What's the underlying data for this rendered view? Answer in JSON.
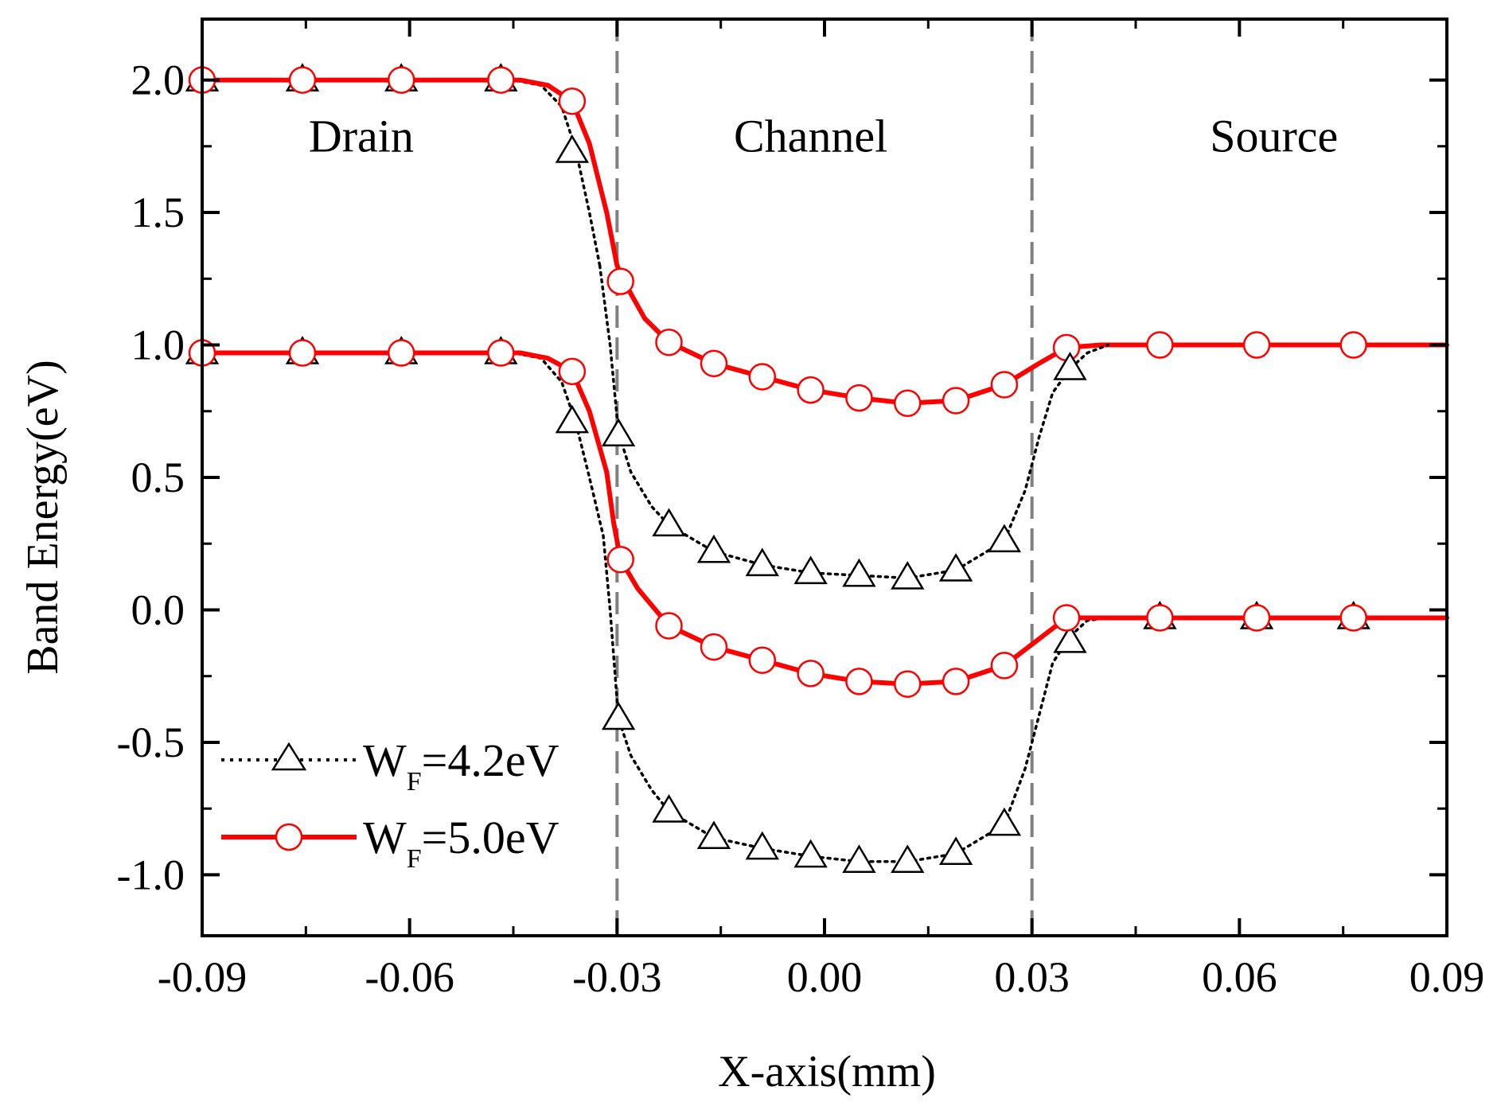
{
  "chart_data": {
    "type": "line",
    "xlabel": "X-axis(mm)",
    "ylabel": "Band Energy(eV)",
    "xlim": [
      -0.09,
      0.09
    ],
    "ylim": [
      -1.23,
      2.23
    ],
    "xticks": [
      -0.09,
      -0.06,
      -0.03,
      0.0,
      0.03,
      0.06,
      0.09
    ],
    "xtick_labels": [
      "-0.09",
      "-0.06",
      "-0.03",
      "0.00",
      "0.03",
      "0.06",
      "0.09"
    ],
    "yticks": [
      -1.0,
      -0.5,
      0.0,
      0.5,
      1.0,
      1.5,
      2.0
    ],
    "ytick_labels": [
      "-1.0",
      "-0.5",
      "0.0",
      "0.5",
      "1.0",
      "1.5",
      "2.0"
    ],
    "vlines": [
      -0.03,
      0.03
    ],
    "regions": [
      {
        "label": "Drain",
        "x": -0.067,
        "y": 1.73
      },
      {
        "label": "Channel",
        "x": -0.002,
        "y": 1.73
      },
      {
        "label": "Source",
        "x": 0.065,
        "y": 1.73
      }
    ],
    "legend": {
      "position": "lower-left",
      "entries": [
        {
          "base": "W",
          "sub": "F",
          "rest": "=4.2eV"
        },
        {
          "base": "W",
          "sub": "F",
          "rest": "=5.0eV"
        }
      ]
    },
    "series": [
      {
        "name": "WF=4.2eV conduction",
        "color": "#000000",
        "style": "dotted",
        "marker": "triangle",
        "line": [
          [
            -0.09,
            2.0
          ],
          [
            -0.045,
            2.0
          ],
          [
            -0.041,
            1.98
          ],
          [
            -0.038,
            1.9
          ],
          [
            -0.036,
            1.74
          ],
          [
            -0.034,
            1.5
          ],
          [
            -0.0325,
            1.3
          ]
        ],
        "points": [
          [
            -0.09,
            2.0
          ],
          [
            -0.0755,
            2.0
          ],
          [
            -0.0612,
            2.0
          ],
          [
            -0.0468,
            2.0
          ],
          [
            -0.0365,
            1.73
          ]
        ]
      },
      {
        "name": "WF=5.0eV conduction",
        "color": "#ff0000",
        "style": "solid",
        "marker": "circle",
        "line": [
          [
            -0.09,
            2.0
          ],
          [
            -0.044,
            2.0
          ],
          [
            -0.04,
            1.98
          ],
          [
            -0.0365,
            1.92
          ],
          [
            -0.034,
            1.76
          ],
          [
            -0.0315,
            1.5
          ],
          [
            -0.03,
            1.3
          ],
          [
            -0.029,
            1.24
          ],
          [
            -0.026,
            1.1
          ],
          [
            -0.0225,
            1.01
          ],
          [
            -0.016,
            0.93
          ],
          [
            -0.009,
            0.88
          ],
          [
            -0.002,
            0.83
          ],
          [
            0.005,
            0.8
          ],
          [
            0.012,
            0.78
          ],
          [
            0.019,
            0.79
          ],
          [
            0.026,
            0.85
          ],
          [
            0.031,
            0.93
          ],
          [
            0.035,
            0.99
          ],
          [
            0.04,
            1.0
          ],
          [
            0.09,
            1.0
          ]
        ],
        "points": [
          [
            -0.09,
            2.0
          ],
          [
            -0.0755,
            2.0
          ],
          [
            -0.0612,
            2.0
          ],
          [
            -0.0468,
            2.0
          ],
          [
            -0.0365,
            1.92
          ],
          [
            -0.0295,
            1.24
          ],
          [
            -0.0225,
            1.01
          ],
          [
            -0.016,
            0.93
          ],
          [
            -0.009,
            0.88
          ],
          [
            -0.002,
            0.83
          ],
          [
            0.005,
            0.8
          ],
          [
            0.012,
            0.78
          ],
          [
            0.019,
            0.79
          ],
          [
            0.026,
            0.85
          ],
          [
            0.035,
            0.99
          ],
          [
            0.0485,
            1.0
          ],
          [
            0.0625,
            1.0
          ],
          [
            0.0765,
            1.0
          ]
        ]
      },
      {
        "name": "WF=4.2eV valence",
        "color": "#000000",
        "style": "dotted",
        "marker": "triangle",
        "line": [
          [
            -0.09,
            0.97
          ],
          [
            -0.045,
            0.97
          ],
          [
            -0.041,
            0.95
          ],
          [
            -0.038,
            0.86
          ],
          [
            -0.036,
            0.71
          ],
          [
            -0.034,
            0.5
          ],
          [
            -0.032,
            0.28
          ],
          [
            -0.031,
            0.0
          ],
          [
            -0.0298,
            -0.41
          ],
          [
            -0.028,
            -0.55
          ],
          [
            -0.025,
            -0.68
          ],
          [
            -0.0225,
            -0.76
          ],
          [
            -0.016,
            -0.86
          ],
          [
            -0.009,
            -0.9
          ],
          [
            -0.002,
            -0.93
          ],
          [
            0.005,
            -0.95
          ],
          [
            0.012,
            -0.95
          ],
          [
            0.019,
            -0.92
          ],
          [
            0.026,
            -0.81
          ],
          [
            0.029,
            -0.6
          ],
          [
            0.031,
            -0.4
          ],
          [
            0.033,
            -0.2
          ],
          [
            0.0355,
            -0.1
          ],
          [
            0.038,
            -0.04
          ],
          [
            0.041,
            -0.03
          ],
          [
            0.09,
            -0.03
          ]
        ],
        "points": [
          [
            -0.09,
            0.97
          ],
          [
            -0.0755,
            0.97
          ],
          [
            -0.0612,
            0.97
          ],
          [
            -0.0468,
            0.97
          ],
          [
            -0.0365,
            0.71
          ],
          [
            -0.0298,
            -0.41
          ],
          [
            -0.0225,
            -0.76
          ],
          [
            -0.016,
            -0.86
          ],
          [
            -0.009,
            -0.9
          ],
          [
            -0.002,
            -0.93
          ],
          [
            0.005,
            -0.95
          ],
          [
            0.012,
            -0.95
          ],
          [
            0.019,
            -0.92
          ],
          [
            0.026,
            -0.81
          ],
          [
            0.0355,
            -0.12
          ],
          [
            0.0485,
            -0.03
          ],
          [
            0.0625,
            -0.03
          ],
          [
            0.0765,
            -0.03
          ]
        ]
      },
      {
        "name": "WF=4.2eV channel",
        "color": "#000000",
        "style": "dotted",
        "marker": "triangle",
        "line": [
          [
            -0.0325,
            1.3
          ],
          [
            -0.031,
            1.0
          ],
          [
            -0.0298,
            0.67
          ],
          [
            -0.028,
            0.52
          ],
          [
            -0.025,
            0.39
          ],
          [
            -0.0225,
            0.32
          ],
          [
            -0.016,
            0.22
          ],
          [
            -0.009,
            0.17
          ],
          [
            -0.002,
            0.14
          ],
          [
            0.005,
            0.13
          ],
          [
            0.012,
            0.12
          ],
          [
            0.019,
            0.15
          ],
          [
            0.026,
            0.26
          ],
          [
            0.029,
            0.45
          ],
          [
            0.031,
            0.65
          ],
          [
            0.033,
            0.82
          ],
          [
            0.0355,
            0.91
          ],
          [
            0.038,
            0.97
          ],
          [
            0.041,
            1.0
          ]
        ],
        "points": [
          [
            -0.0298,
            0.66
          ],
          [
            -0.0225,
            0.32
          ],
          [
            -0.016,
            0.22
          ],
          [
            -0.009,
            0.17
          ],
          [
            -0.002,
            0.14
          ],
          [
            0.005,
            0.13
          ],
          [
            0.012,
            0.12
          ],
          [
            0.019,
            0.15
          ],
          [
            0.026,
            0.26
          ],
          [
            0.0355,
            0.91
          ]
        ]
      },
      {
        "name": "WF=5.0eV valence",
        "color": "#ff0000",
        "style": "solid",
        "marker": "circle",
        "line": [
          [
            -0.09,
            0.97
          ],
          [
            -0.044,
            0.97
          ],
          [
            -0.04,
            0.95
          ],
          [
            -0.0365,
            0.9
          ],
          [
            -0.034,
            0.75
          ],
          [
            -0.0315,
            0.52
          ],
          [
            -0.0305,
            0.33
          ],
          [
            -0.0295,
            0.19
          ],
          [
            -0.027,
            0.08
          ],
          [
            -0.0225,
            -0.06
          ],
          [
            -0.016,
            -0.14
          ],
          [
            -0.009,
            -0.19
          ],
          [
            -0.002,
            -0.24
          ],
          [
            0.005,
            -0.27
          ],
          [
            0.012,
            -0.28
          ],
          [
            0.019,
            -0.27
          ],
          [
            0.026,
            -0.21
          ],
          [
            0.031,
            -0.11
          ],
          [
            0.035,
            -0.03
          ],
          [
            0.04,
            -0.03
          ],
          [
            0.09,
            -0.03
          ]
        ],
        "points": [
          [
            -0.09,
            0.97
          ],
          [
            -0.0755,
            0.97
          ],
          [
            -0.0612,
            0.97
          ],
          [
            -0.0468,
            0.97
          ],
          [
            -0.0365,
            0.9
          ],
          [
            -0.0295,
            0.19
          ],
          [
            -0.0225,
            -0.06
          ],
          [
            -0.016,
            -0.14
          ],
          [
            -0.009,
            -0.19
          ],
          [
            -0.002,
            -0.24
          ],
          [
            0.005,
            -0.27
          ],
          [
            0.012,
            -0.28
          ],
          [
            0.019,
            -0.27
          ],
          [
            0.026,
            -0.21
          ],
          [
            0.035,
            -0.03
          ],
          [
            0.0485,
            -0.03
          ],
          [
            0.0625,
            -0.03
          ],
          [
            0.0765,
            -0.03
          ]
        ]
      }
    ]
  }
}
